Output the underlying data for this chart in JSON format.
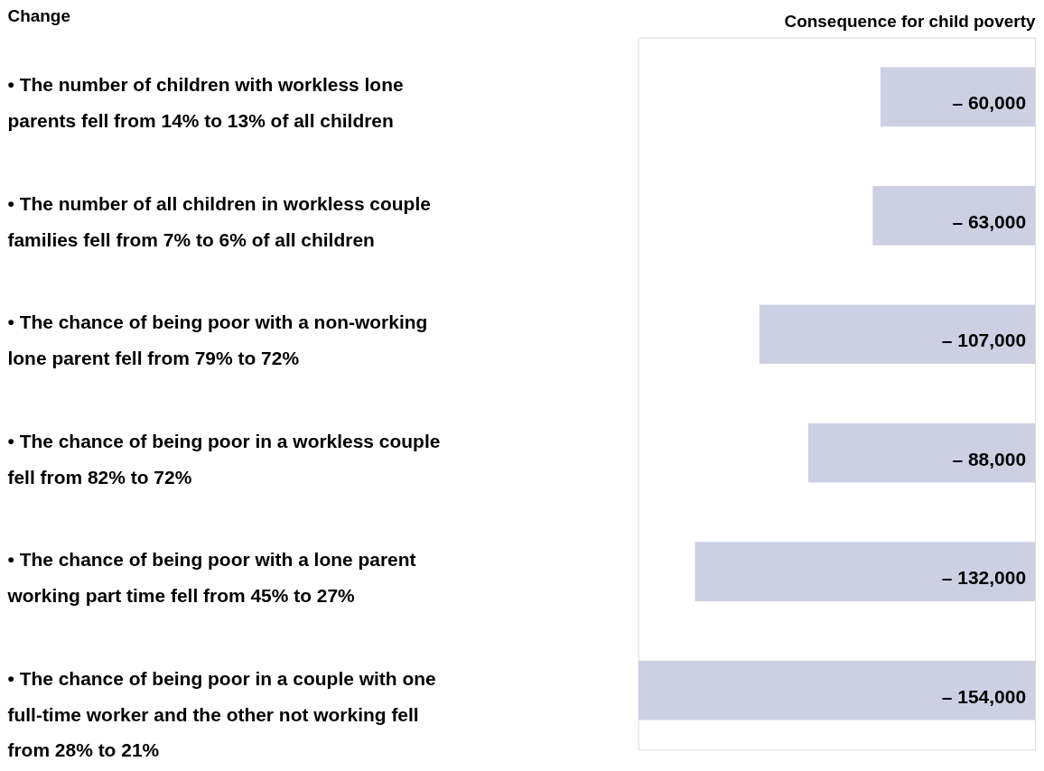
{
  "chart_data": {
    "type": "bar",
    "orientation": "horizontal",
    "ylabel": "Change",
    "xlabel": "Consequence for child poverty",
    "categories": [
      "• The number of children with workless lone parents fell from 14% to 13% of all children",
      "• The number of all children in workless couple families fell from 7% to 6% of all children",
      "• The chance of being poor with a non-working lone parent fell from 79% to 72%",
      "• The chance of being poor in a workless couple fell from 82% to 72%",
      "• The chance of being poor with a lone parent working part time fell from 45% to 27%",
      "• The chance of being poor in a couple with one full-time worker and the other not working fell from 28% to 21%"
    ],
    "values": [
      -60000,
      -63000,
      -107000,
      -88000,
      -132000,
      -154000
    ],
    "value_labels": [
      "– 60,000",
      "– 63,000",
      "– 107,000",
      "– 88,000",
      "– 132,000",
      "– 154,000"
    ],
    "color": "#cdd0e3",
    "tick_labels": false,
    "grid": false
  }
}
